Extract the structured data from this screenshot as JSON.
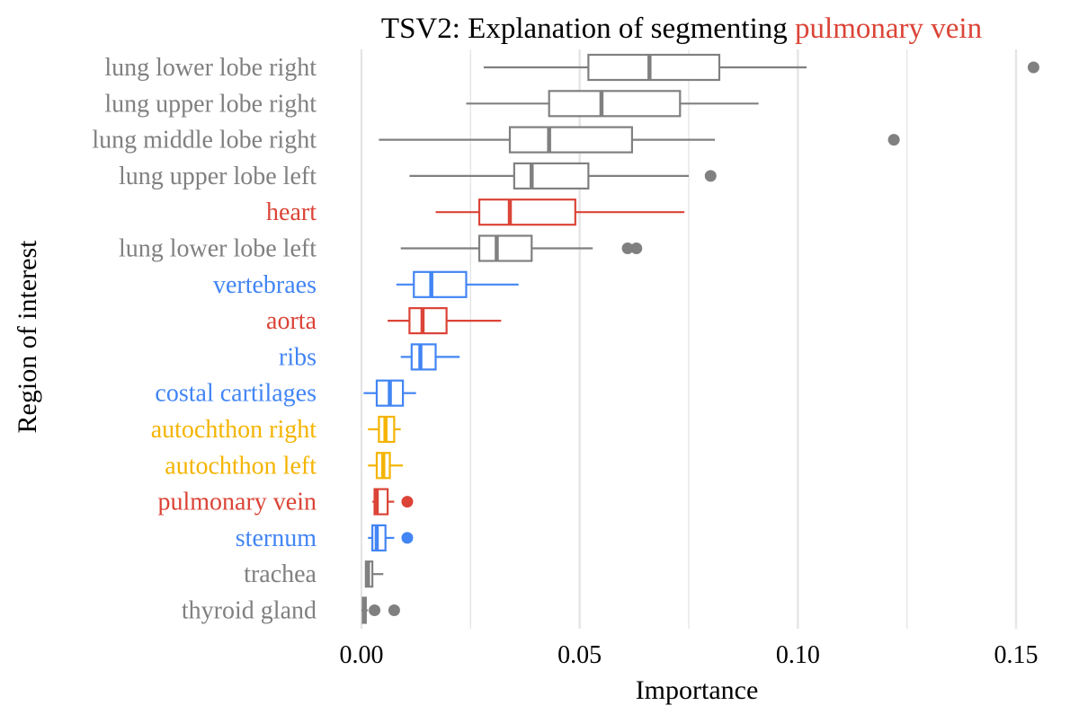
{
  "chart_data": {
    "type": "boxplot",
    "orientation": "horizontal",
    "title_prefix": "TSV2: Explanation of segmenting ",
    "title_highlight": "pulmonary vein",
    "xlabel": "Importance",
    "ylabel": "Region of interest",
    "xlim": [
      0.0,
      0.155
    ],
    "xticks": [
      0.0,
      0.05,
      0.1,
      0.15
    ],
    "xtick_labels": [
      "0.00",
      "0.05",
      "0.10",
      "0.15"
    ],
    "grid": "vertical",
    "legend": "none",
    "colors": {
      "gray": "#808080",
      "red": "#DB4437",
      "blue": "#4285F4",
      "yellow": "#F4B400",
      "grid": "#E5E5E5",
      "text": "#000000"
    },
    "categories": [
      {
        "label": "lung lower lobe right",
        "color": "gray",
        "whisker_low": 0.028,
        "q1": 0.052,
        "median": 0.066,
        "q3": 0.082,
        "whisker_high": 0.102,
        "outliers": [
          0.154
        ]
      },
      {
        "label": "lung upper lobe right",
        "color": "gray",
        "whisker_low": 0.024,
        "q1": 0.043,
        "median": 0.055,
        "q3": 0.073,
        "whisker_high": 0.091,
        "outliers": []
      },
      {
        "label": "lung middle lobe right",
        "color": "gray",
        "whisker_low": 0.004,
        "q1": 0.034,
        "median": 0.043,
        "q3": 0.062,
        "whisker_high": 0.081,
        "outliers": [
          0.122
        ]
      },
      {
        "label": "lung upper lobe left",
        "color": "gray",
        "whisker_low": 0.011,
        "q1": 0.035,
        "median": 0.039,
        "q3": 0.052,
        "whisker_high": 0.075,
        "outliers": [
          0.08
        ]
      },
      {
        "label": "heart",
        "color": "red",
        "whisker_low": 0.017,
        "q1": 0.027,
        "median": 0.034,
        "q3": 0.049,
        "whisker_high": 0.074,
        "outliers": []
      },
      {
        "label": "lung lower lobe left",
        "color": "gray",
        "whisker_low": 0.009,
        "q1": 0.027,
        "median": 0.031,
        "q3": 0.039,
        "whisker_high": 0.053,
        "outliers": [
          0.061,
          0.063
        ]
      },
      {
        "label": "vertebraes",
        "color": "blue",
        "whisker_low": 0.008,
        "q1": 0.012,
        "median": 0.016,
        "q3": 0.024,
        "whisker_high": 0.036,
        "outliers": []
      },
      {
        "label": "aorta",
        "color": "red",
        "whisker_low": 0.006,
        "q1": 0.011,
        "median": 0.014,
        "q3": 0.0195,
        "whisker_high": 0.032,
        "outliers": []
      },
      {
        "label": "ribs",
        "color": "blue",
        "whisker_low": 0.009,
        "q1": 0.0115,
        "median": 0.0135,
        "q3": 0.017,
        "whisker_high": 0.0225,
        "outliers": []
      },
      {
        "label": "costal cartilages",
        "color": "blue",
        "whisker_low": 0.0005,
        "q1": 0.0035,
        "median": 0.0065,
        "q3": 0.0095,
        "whisker_high": 0.0125,
        "outliers": []
      },
      {
        "label": "autochthon right",
        "color": "yellow",
        "whisker_low": 0.0015,
        "q1": 0.004,
        "median": 0.0055,
        "q3": 0.0075,
        "whisker_high": 0.009,
        "outliers": []
      },
      {
        "label": "autochthon left",
        "color": "yellow",
        "whisker_low": 0.0015,
        "q1": 0.0035,
        "median": 0.005,
        "q3": 0.0065,
        "whisker_high": 0.0095,
        "outliers": []
      },
      {
        "label": "pulmonary vein",
        "color": "red",
        "whisker_low": 0.0025,
        "q1": 0.003,
        "median": 0.0035,
        "q3": 0.006,
        "whisker_high": 0.0075,
        "outliers": [
          0.0105
        ]
      },
      {
        "label": "sternum",
        "color": "blue",
        "whisker_low": 0.0015,
        "q1": 0.0025,
        "median": 0.0035,
        "q3": 0.0055,
        "whisker_high": 0.0075,
        "outliers": [
          0.0105
        ]
      },
      {
        "label": "trachea",
        "color": "gray",
        "whisker_low": 0.0008,
        "q1": 0.001,
        "median": 0.0015,
        "q3": 0.0025,
        "whisker_high": 0.005,
        "outliers": []
      },
      {
        "label": "thyroid gland",
        "color": "gray",
        "whisker_low": 0.0,
        "q1": 0.0003,
        "median": 0.0006,
        "q3": 0.001,
        "whisker_high": 0.0015,
        "outliers": [
          0.003,
          0.0075
        ]
      }
    ]
  }
}
